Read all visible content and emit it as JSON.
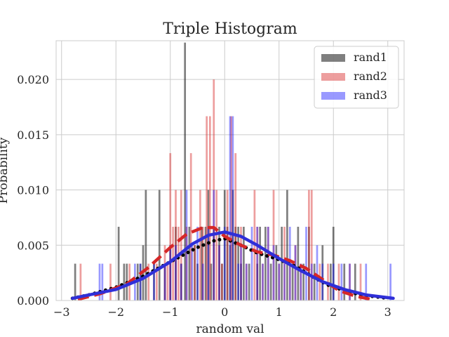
{
  "chart_data": {
    "type": "bar",
    "title": "Triple Histogram",
    "xlabel": "random val",
    "ylabel": "Probability",
    "xlim": [
      -3.1,
      3.3
    ],
    "ylim": [
      0,
      0.0235
    ],
    "x_ticks": [
      -3,
      -2,
      -1,
      0,
      1,
      2,
      3
    ],
    "x_tick_labels": [
      "−3",
      "−2",
      "−1",
      "0",
      "1",
      "2",
      "3"
    ],
    "y_ticks": [
      0,
      0.005,
      0.01,
      0.015,
      0.02
    ],
    "y_tick_labels": [
      "0.000",
      "0.005",
      "0.010",
      "0.015",
      "0.020"
    ],
    "grid": true,
    "legend_position": "top-right",
    "bin_width": 0.035,
    "series": [
      {
        "name": "rand1",
        "color": "#000000",
        "opacity": 0.5,
        "bins": [
          [
            -2.75,
            0.00333
          ],
          [
            -1.95,
            0.00667
          ],
          [
            -1.85,
            0.00333
          ],
          [
            -1.8,
            0.00333
          ],
          [
            -1.6,
            0.00333
          ],
          [
            -1.55,
            0.00333
          ],
          [
            -1.5,
            0.005
          ],
          [
            -1.45,
            0.01
          ],
          [
            -1.3,
            0.00333
          ],
          [
            -1.2,
            0.01
          ],
          [
            -1.1,
            0.00333
          ],
          [
            -1.0,
            0.005
          ],
          [
            -0.9,
            0.00667
          ],
          [
            -0.8,
            0.00333
          ],
          [
            -0.73,
            0.02333
          ],
          [
            -0.65,
            0.00667
          ],
          [
            -0.55,
            0.005
          ],
          [
            -0.5,
            0.00333
          ],
          [
            -0.42,
            0.00667
          ],
          [
            -0.35,
            0.00667
          ],
          [
            -0.3,
            0.01
          ],
          [
            -0.25,
            0.00333
          ],
          [
            -0.2,
            0.00667
          ],
          [
            -0.1,
            0.00667
          ],
          [
            -0.05,
            0.00333
          ],
          [
            0.0,
            0.01
          ],
          [
            0.05,
            0.00667
          ],
          [
            0.1,
            0.005
          ],
          [
            0.15,
            0.01
          ],
          [
            0.2,
            0.00667
          ],
          [
            0.25,
            0.00667
          ],
          [
            0.3,
            0.00333
          ],
          [
            0.35,
            0.00667
          ],
          [
            0.45,
            0.00333
          ],
          [
            0.6,
            0.00333
          ],
          [
            0.65,
            0.00667
          ],
          [
            0.75,
            0.00667
          ],
          [
            0.85,
            0.00333
          ],
          [
            0.95,
            0.005
          ],
          [
            1.05,
            0.00667
          ],
          [
            1.15,
            0.01
          ],
          [
            1.25,
            0.00333
          ],
          [
            1.35,
            0.00667
          ],
          [
            1.45,
            0.00333
          ],
          [
            1.55,
            0.00667
          ],
          [
            1.65,
            0.00333
          ],
          [
            1.8,
            0.005
          ],
          [
            1.95,
            0.00333
          ],
          [
            2.0,
            0.00667
          ],
          [
            2.2,
            0.00333
          ],
          [
            2.4,
            0.00333
          ]
        ]
      },
      {
        "name": "rand2",
        "color": "#d62728",
        "opacity": 0.45,
        "bins": [
          [
            -2.65,
            0.00333
          ],
          [
            -2.1,
            0.00333
          ],
          [
            -1.75,
            0.00333
          ],
          [
            -1.4,
            0.00333
          ],
          [
            -1.25,
            0.00333
          ],
          [
            -1.1,
            0.005
          ],
          [
            -1.05,
            0.00333
          ],
          [
            -1.0,
            0.01333
          ],
          [
            -0.95,
            0.00667
          ],
          [
            -0.9,
            0.01
          ],
          [
            -0.85,
            0.00667
          ],
          [
            -0.8,
            0.01
          ],
          [
            -0.7,
            0.00667
          ],
          [
            -0.62,
            0.01333
          ],
          [
            -0.55,
            0.005
          ],
          [
            -0.45,
            0.01
          ],
          [
            -0.4,
            0.00667
          ],
          [
            -0.33,
            0.01667
          ],
          [
            -0.27,
            0.01667
          ],
          [
            -0.2,
            0.02
          ],
          [
            -0.15,
            0.01
          ],
          [
            -0.1,
            0.005
          ],
          [
            -0.05,
            0.00333
          ],
          [
            0.05,
            0.01
          ],
          [
            0.12,
            0.01667
          ],
          [
            0.2,
            0.01333
          ],
          [
            0.3,
            0.00667
          ],
          [
            0.4,
            0.00333
          ],
          [
            0.55,
            0.01
          ],
          [
            0.6,
            0.00667
          ],
          [
            0.7,
            0.00333
          ],
          [
            0.8,
            0.00667
          ],
          [
            0.9,
            0.01
          ],
          [
            1.0,
            0.00333
          ],
          [
            1.1,
            0.00667
          ],
          [
            1.2,
            0.00333
          ],
          [
            1.3,
            0.005
          ],
          [
            1.4,
            0.00333
          ],
          [
            1.55,
            0.01
          ],
          [
            1.6,
            0.01
          ],
          [
            1.75,
            0.00333
          ],
          [
            1.9,
            0.00333
          ],
          [
            2.1,
            0.00333
          ],
          [
            2.3,
            0.00333
          ],
          [
            2.5,
            0.00333
          ]
        ]
      },
      {
        "name": "rand3",
        "color": "#0000ff",
        "opacity": 0.4,
        "bins": [
          [
            -2.3,
            0.00333
          ],
          [
            -2.25,
            0.00333
          ],
          [
            -1.65,
            0.00333
          ],
          [
            -1.55,
            0.00333
          ],
          [
            -1.3,
            0.00333
          ],
          [
            -1.1,
            0.00333
          ],
          [
            -1.0,
            0.005
          ],
          [
            -0.9,
            0.005
          ],
          [
            -0.8,
            0.00333
          ],
          [
            -0.7,
            0.01
          ],
          [
            -0.6,
            0.005
          ],
          [
            -0.5,
            0.00667
          ],
          [
            -0.4,
            0.00333
          ],
          [
            -0.3,
            0.00667
          ],
          [
            -0.2,
            0.01
          ],
          [
            -0.1,
            0.005
          ],
          [
            0.0,
            0.00667
          ],
          [
            0.1,
            0.01667
          ],
          [
            0.15,
            0.01667
          ],
          [
            0.25,
            0.00333
          ],
          [
            0.3,
            0.005
          ],
          [
            0.4,
            0.00333
          ],
          [
            0.5,
            0.00667
          ],
          [
            0.6,
            0.00667
          ],
          [
            0.7,
            0.00333
          ],
          [
            0.8,
            0.00667
          ],
          [
            0.9,
            0.005
          ],
          [
            1.0,
            0.00333
          ],
          [
            1.1,
            0.00333
          ],
          [
            1.2,
            0.00667
          ],
          [
            1.3,
            0.005
          ],
          [
            1.4,
            0.00333
          ],
          [
            1.5,
            0.00667
          ],
          [
            1.6,
            0.00333
          ],
          [
            1.7,
            0.005
          ],
          [
            1.8,
            0.00333
          ],
          [
            2.0,
            0.00333
          ],
          [
            2.15,
            0.00333
          ],
          [
            2.3,
            0.00333
          ],
          [
            2.6,
            0.00333
          ],
          [
            3.05,
            0.00333
          ]
        ]
      }
    ],
    "kde_lines": [
      {
        "series": "rand1",
        "color": "#000000",
        "style": "dotted",
        "points": [
          [
            -2.8,
            0.0002
          ],
          [
            -2.5,
            0.0005
          ],
          [
            -2.0,
            0.0012
          ],
          [
            -1.5,
            0.0022
          ],
          [
            -1.0,
            0.0035
          ],
          [
            -0.5,
            0.0048
          ],
          [
            -0.2,
            0.0054
          ],
          [
            0.0,
            0.0056
          ],
          [
            0.3,
            0.005
          ],
          [
            0.6,
            0.0043
          ],
          [
            1.0,
            0.0037
          ],
          [
            1.3,
            0.0031
          ],
          [
            1.6,
            0.0022
          ],
          [
            1.9,
            0.0014
          ],
          [
            2.2,
            0.0009
          ],
          [
            2.5,
            0.0005
          ],
          [
            3.0,
            0.0002
          ]
        ]
      },
      {
        "series": "rand2",
        "color": "#d62728",
        "style": "dashed",
        "points": [
          [
            -2.7,
            0.0001
          ],
          [
            -2.3,
            0.0006
          ],
          [
            -1.8,
            0.0015
          ],
          [
            -1.4,
            0.003
          ],
          [
            -1.0,
            0.0048
          ],
          [
            -0.7,
            0.006
          ],
          [
            -0.4,
            0.0066
          ],
          [
            -0.2,
            0.0066
          ],
          [
            0.0,
            0.0058
          ],
          [
            0.3,
            0.005
          ],
          [
            0.6,
            0.0044
          ],
          [
            0.9,
            0.0041
          ],
          [
            1.2,
            0.0036
          ],
          [
            1.5,
            0.0029
          ],
          [
            1.8,
            0.0019
          ],
          [
            2.1,
            0.0009
          ],
          [
            2.4,
            0.0004
          ],
          [
            2.7,
            0.0001
          ]
        ]
      },
      {
        "series": "rand3",
        "color": "#2f2fd8",
        "style": "solid",
        "points": [
          [
            -2.8,
            0.0002
          ],
          [
            -2.5,
            0.0005
          ],
          [
            -2.0,
            0.001
          ],
          [
            -1.5,
            0.002
          ],
          [
            -1.0,
            0.0035
          ],
          [
            -0.6,
            0.0051
          ],
          [
            -0.3,
            0.0059
          ],
          [
            0.0,
            0.0062
          ],
          [
            0.3,
            0.0058
          ],
          [
            0.6,
            0.005
          ],
          [
            1.0,
            0.0038
          ],
          [
            1.4,
            0.0027
          ],
          [
            1.8,
            0.0017
          ],
          [
            2.2,
            0.001
          ],
          [
            2.6,
            0.0005
          ],
          [
            3.1,
            0.0002
          ]
        ]
      }
    ]
  }
}
